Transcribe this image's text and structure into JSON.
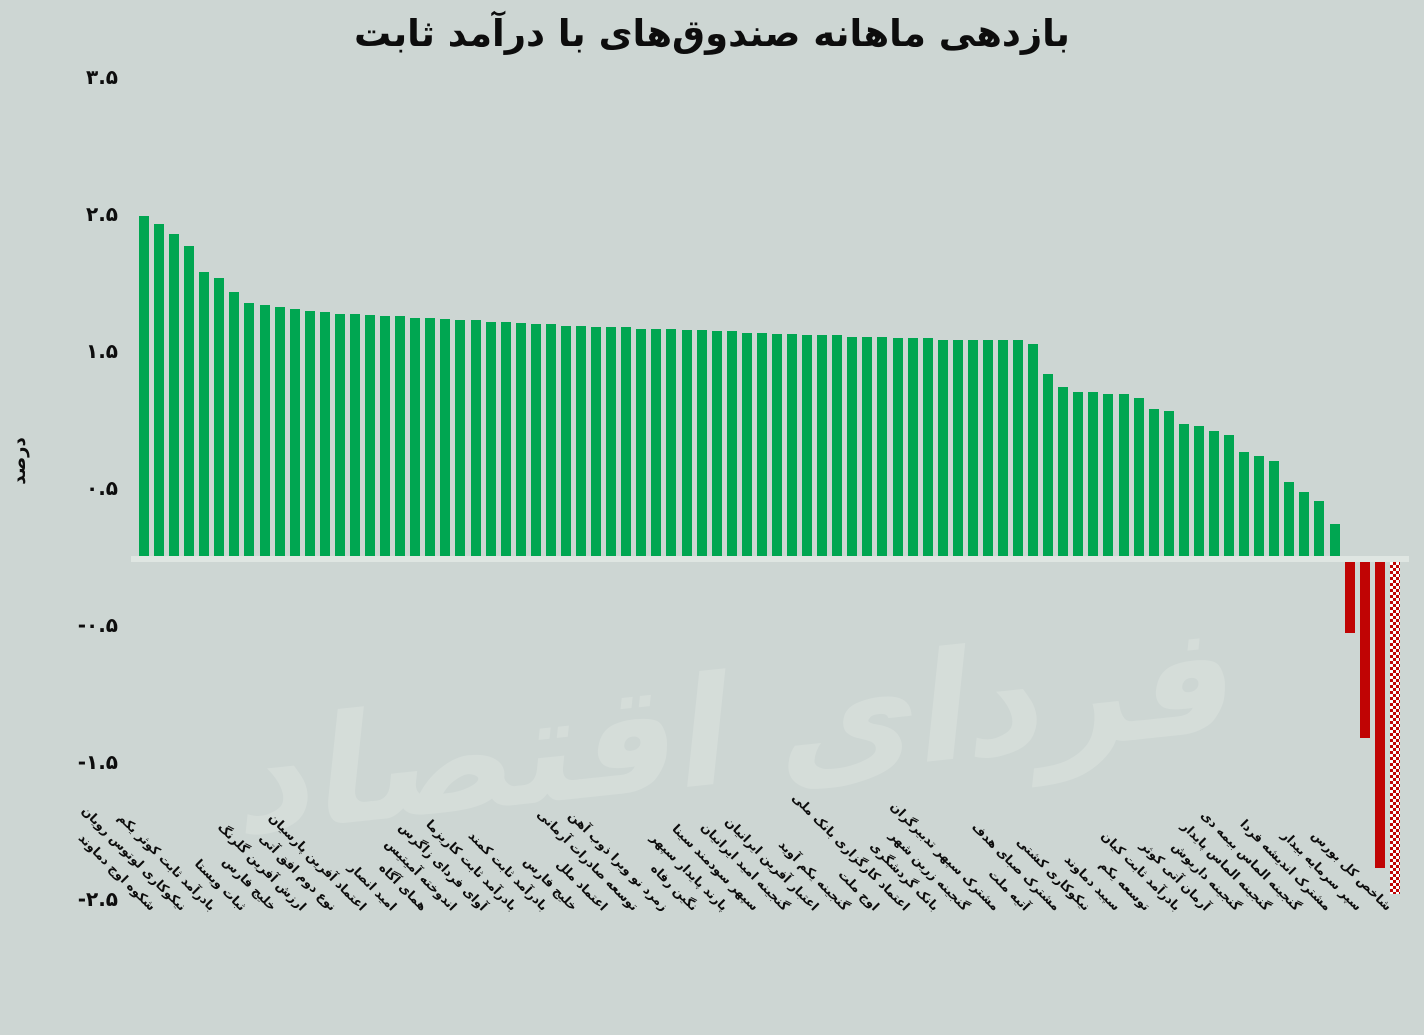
{
  "title": "بازدهی ماهانه صندوق‌های با درآمد ثابت",
  "watermark": "فردای اقتصاد",
  "colors": {
    "background": "#cdd6d3",
    "positive_bar": "#00a651",
    "negative_bar": "#c00404",
    "zero_line": "#dfe6e2",
    "text": "#0d0d0d",
    "watermark": "#d7dfdb"
  },
  "chart_data": {
    "type": "bar",
    "title": "بازدهی ماهانه صندوق‌های با درآمد ثابت",
    "xlabel": "",
    "ylabel": "درصد",
    "ylim": [
      -2.8,
      3.6
    ],
    "grid": false,
    "legend": "none",
    "yticks": [
      3.5,
      2.5,
      1.5,
      0.5,
      -0.5,
      -1.5,
      -2.5
    ],
    "ytick_labels": [
      "۳.۵",
      "۲.۵",
      "۱.۵",
      "۰.۵",
      "-۰.۵",
      "-۱.۵",
      "-۲.۵"
    ],
    "bar_count": 84,
    "values": [
      2.48,
      2.42,
      2.35,
      2.26,
      2.07,
      2.03,
      1.93,
      1.85,
      1.83,
      1.82,
      1.8,
      1.79,
      1.78,
      1.77,
      1.77,
      1.76,
      1.75,
      1.75,
      1.74,
      1.74,
      1.73,
      1.72,
      1.72,
      1.71,
      1.71,
      1.7,
      1.69,
      1.69,
      1.68,
      1.68,
      1.67,
      1.67,
      1.67,
      1.66,
      1.66,
      1.66,
      1.65,
      1.65,
      1.64,
      1.64,
      1.63,
      1.63,
      1.62,
      1.62,
      1.61,
      1.61,
      1.61,
      1.6,
      1.6,
      1.6,
      1.59,
      1.59,
      1.59,
      1.58,
      1.58,
      1.58,
      1.58,
      1.58,
      1.58,
      1.55,
      1.33,
      1.23,
      1.2,
      1.2,
      1.18,
      1.18,
      1.15,
      1.07,
      1.06,
      0.96,
      0.95,
      0.91,
      0.88,
      0.76,
      0.73,
      0.69,
      0.54,
      0.47,
      0.4,
      0.23,
      -0.56,
      -1.33,
      -2.28,
      -2.47
    ],
    "xtick_every": 2,
    "xtick_labels": [
      "شکوه اوج دماوند",
      "نیکوکاری لوتوس رویان",
      "بادرآمد ثابت کوثر یکم",
      "ثبات ویستا",
      "خلیج فارس",
      "ارزش آفرین گلرنگ",
      "نوع دوم افق آتی",
      "اعتماد آفرین پارسیان",
      "امید انصار",
      "همای آگاه",
      "اندوخته آمیتیس",
      "آوای فردای زاگرس",
      "بادرآمد ثابت کاریزما",
      "بادرآمد ثابت کمند",
      "خلیج فارس",
      "اعتماد ملل",
      "توسعه صادرات آرمانی",
      "زمرد نو ویرا ذوب آهن",
      "نگین رفاه",
      "پارند پایدار سپهر",
      "سپهر سودمند سینا",
      "گنجینه امید ایرانیان",
      "اعتبار آفرین ایرانیان",
      "گنجینه یکم آوید",
      "اوج ملت",
      "اعتماد کارگزاری بانک ملی",
      "بانک گردشگری",
      "گنجینه زرین شهر",
      "مشترک سپهر تدبیرگران",
      "آتیه ملت",
      "مشترک صبای هدف",
      "نیکوکاری کشتی",
      "سپید دماوند",
      "توسعه یکم",
      "بادرآمد ثابت کیان",
      "آرمان آتی کوثر",
      "گنجینه داریوش",
      "گنجینه الماس پایدار",
      "گنجینه الماس بیمه دی",
      "مشترک اندیشه فردا",
      "سپر سرمایه بیدار",
      "شاخص کل بورس"
    ],
    "pattern_bar": {
      "index": 84,
      "label": "شاخص کل بورس",
      "style": "red-white checker hatch"
    }
  }
}
